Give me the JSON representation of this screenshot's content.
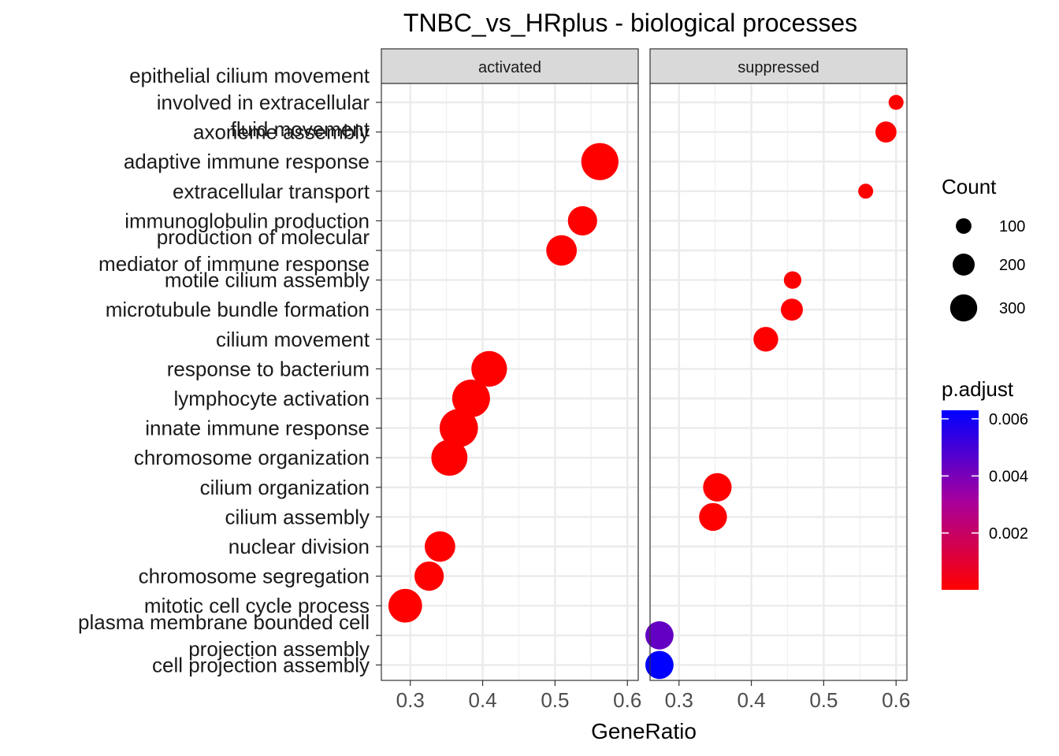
{
  "chart_data": {
    "type": "scatter",
    "title": "TNBC_vs_HRplus - biological processes",
    "xlabel": "GeneRatio",
    "ylabel": "",
    "xlim": [
      0.26,
      0.615
    ],
    "xticks": [
      "0.3",
      "0.4",
      "0.5",
      "0.6"
    ],
    "grid": true,
    "legend_position": "right",
    "panels": [
      {
        "name": "activated",
        "points": [
          {
            "term": "adaptive immune response",
            "x": 0.562,
            "count": 340,
            "p_adjust": 1e-05
          },
          {
            "term": "immunoglobulin production",
            "x": 0.538,
            "count": 210,
            "p_adjust": 1e-05
          },
          {
            "term": "production of molecular mediator of immune response",
            "x": 0.509,
            "count": 230,
            "p_adjust": 1e-05
          },
          {
            "term": "response to bacterium",
            "x": 0.409,
            "count": 310,
            "p_adjust": 1e-05
          },
          {
            "term": "lymphocyte activation",
            "x": 0.384,
            "count": 350,
            "p_adjust": 1e-05
          },
          {
            "term": "innate immune response",
            "x": 0.367,
            "count": 360,
            "p_adjust": 1e-05
          },
          {
            "term": "chromosome organization",
            "x": 0.354,
            "count": 320,
            "p_adjust": 1e-05
          },
          {
            "term": "nuclear division",
            "x": 0.341,
            "count": 230,
            "p_adjust": 1e-05
          },
          {
            "term": "chromosome segregation",
            "x": 0.326,
            "count": 210,
            "p_adjust": 1e-05
          },
          {
            "term": "mitotic cell cycle process",
            "x": 0.293,
            "count": 280,
            "p_adjust": 1e-05
          }
        ]
      },
      {
        "name": "suppressed",
        "points": [
          {
            "term": "epithelial cilium movement involved in extracellular fluid movement",
            "x": 0.6,
            "count": 55,
            "p_adjust": 1e-05
          },
          {
            "term": "axoneme assembly",
            "x": 0.586,
            "count": 110,
            "p_adjust": 1e-05
          },
          {
            "term": "extracellular transport",
            "x": 0.558,
            "count": 55,
            "p_adjust": 1e-05
          },
          {
            "term": "motile cilium assembly",
            "x": 0.457,
            "count": 75,
            "p_adjust": 1e-05
          },
          {
            "term": "microtubule bundle formation",
            "x": 0.456,
            "count": 120,
            "p_adjust": 1e-05
          },
          {
            "term": "cilium movement",
            "x": 0.42,
            "count": 150,
            "p_adjust": 1e-05
          },
          {
            "term": "cilium organization",
            "x": 0.353,
            "count": 200,
            "p_adjust": 1e-05
          },
          {
            "term": "cilium assembly",
            "x": 0.347,
            "count": 190,
            "p_adjust": 1e-05
          },
          {
            "term": "plasma membrane bounded cell projection assembly",
            "x": 0.273,
            "count": 195,
            "p_adjust": 0.0044
          },
          {
            "term": "cell projection assembly",
            "x": 0.273,
            "count": 195,
            "p_adjust": 0.0063
          }
        ]
      }
    ],
    "y_categories": [
      {
        "lines": [
          "epithelial cilium movement",
          "involved in extracellular",
          "fluid movement"
        ]
      },
      {
        "lines": [
          "axoneme assembly"
        ]
      },
      {
        "lines": [
          "adaptive immune response"
        ]
      },
      {
        "lines": [
          "extracellular transport"
        ]
      },
      {
        "lines": [
          "immunoglobulin production"
        ]
      },
      {
        "lines": [
          "production of molecular",
          "mediator of immune response"
        ]
      },
      {
        "lines": [
          "motile cilium assembly"
        ]
      },
      {
        "lines": [
          "microtubule bundle formation"
        ]
      },
      {
        "lines": [
          "cilium movement"
        ]
      },
      {
        "lines": [
          "response to bacterium"
        ]
      },
      {
        "lines": [
          "lymphocyte activation"
        ]
      },
      {
        "lines": [
          "innate immune response"
        ]
      },
      {
        "lines": [
          "chromosome organization"
        ]
      },
      {
        "lines": [
          "cilium organization"
        ]
      },
      {
        "lines": [
          "cilium assembly"
        ]
      },
      {
        "lines": [
          "nuclear division"
        ]
      },
      {
        "lines": [
          "chromosome segregation"
        ]
      },
      {
        "lines": [
          "mitotic cell cycle process"
        ]
      },
      {
        "lines": [
          "plasma membrane bounded cell",
          "projection assembly"
        ]
      },
      {
        "lines": [
          "cell projection assembly"
        ]
      }
    ],
    "size_legend": {
      "title": "Count",
      "values": [
        100,
        200,
        300
      ],
      "labels": [
        "100",
        "200",
        "300"
      ]
    },
    "color_legend": {
      "title": "p.adjust",
      "low_color": "#ff0000",
      "mid_color": "#a6009e",
      "high_color": "#0000ff",
      "range": [
        1e-05,
        0.0063
      ],
      "ticks": [
        0.002,
        0.004,
        0.006
      ],
      "tick_labels": [
        "0.002",
        "0.004",
        "0.006"
      ]
    }
  }
}
